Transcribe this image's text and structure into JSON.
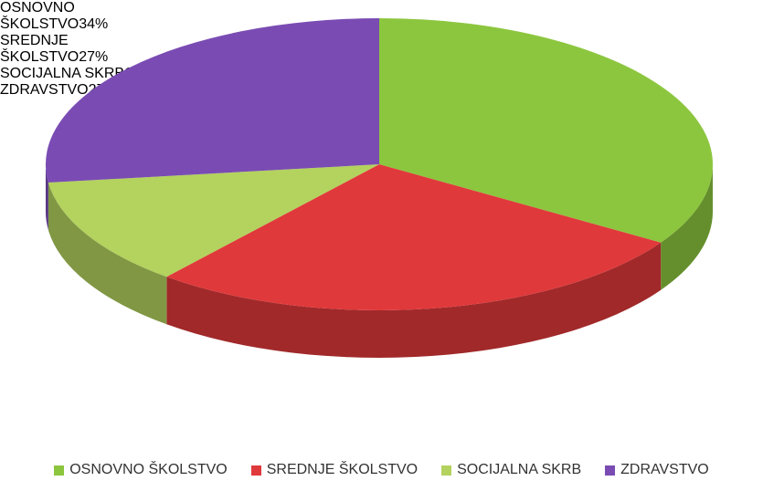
{
  "chart_data": {
    "type": "pie",
    "categories": [
      "OSNOVNO ŠKOLSTVO",
      "SREDNJE ŠKOLSTVO",
      "SOCIJALNA SKRB",
      "ZDRAVSTVO"
    ],
    "values": [
      34,
      27,
      12,
      27
    ],
    "value_labels": [
      "34%",
      "27%",
      "12%",
      "27%"
    ],
    "colors": [
      "#8cc63e",
      "#e0393b",
      "#b3d25e",
      "#7a4cb3"
    ],
    "legend": "bottom"
  }
}
